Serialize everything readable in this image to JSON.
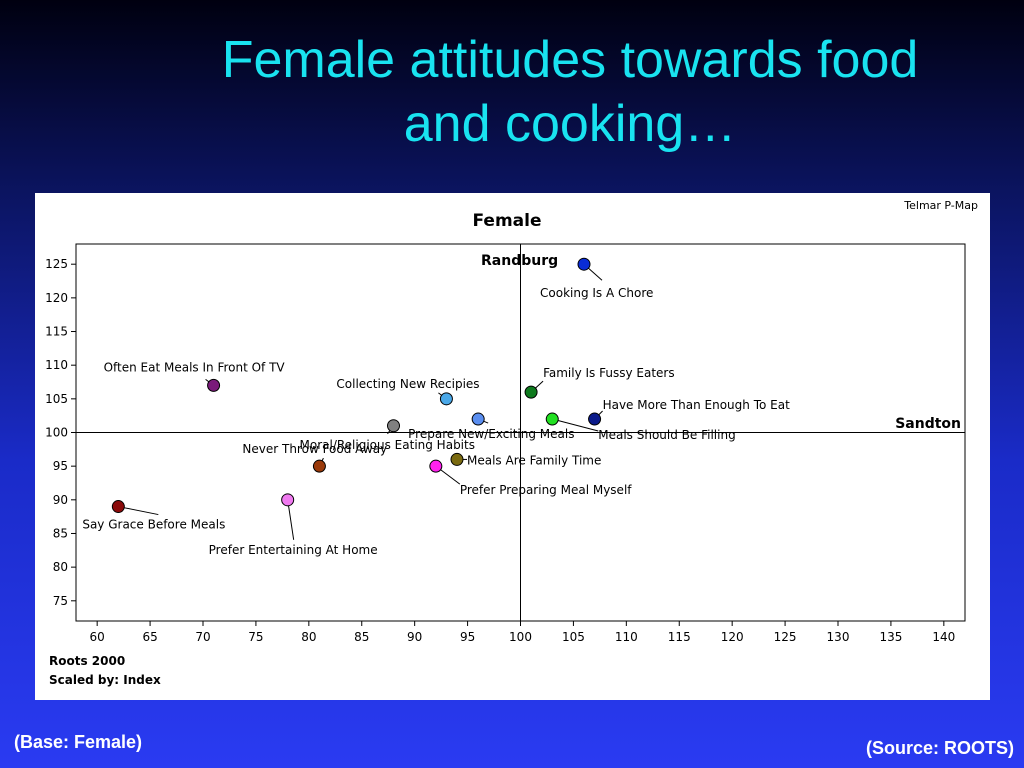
{
  "slide": {
    "title_line1": "Female attitudes towards food",
    "title_line2": "and cooking…",
    "base_note": "(Base: Female)",
    "source_note": "(Source: ROOTS)"
  },
  "chart_data": {
    "type": "scatter",
    "title": "Female",
    "brand": "Telmar P-Map",
    "footer_line1": "Roots 2000",
    "footer_line2": "Scaled by: Index",
    "x_axis_name": "Randburg",
    "y_axis_name": "Sandton",
    "xlim": [
      58,
      142
    ],
    "ylim": [
      72,
      128
    ],
    "x_ticks": [
      60,
      65,
      70,
      75,
      80,
      85,
      90,
      95,
      100,
      105,
      110,
      115,
      120,
      125,
      130,
      135,
      140
    ],
    "y_ticks": [
      75,
      80,
      85,
      90,
      95,
      100,
      105,
      110,
      115,
      120,
      125
    ],
    "crosshair": {
      "x": 100,
      "y": 100
    },
    "points": [
      {
        "label": "Cooking Is A Chore",
        "x": 106,
        "y": 125,
        "color": "#0a2cd6"
      },
      {
        "label": "Often Eat Meals In Front Of TV",
        "x": 71,
        "y": 107,
        "color": "#7a1a7a"
      },
      {
        "label": "Collecting New Recipies",
        "x": 93,
        "y": 105,
        "color": "#4aa8e8"
      },
      {
        "label": "Family Is Fussy Eaters",
        "x": 101,
        "y": 106,
        "color": "#0e7a1e"
      },
      {
        "label": "Have More Than Enough To Eat",
        "x": 107,
        "y": 102,
        "color": "#0a1a8a"
      },
      {
        "label": "Prepare New/Exciting Meals",
        "x": 96,
        "y": 102,
        "color": "#5a8ef0"
      },
      {
        "label": "Meals Should Be Filling",
        "x": 103,
        "y": 102,
        "color": "#22e022"
      },
      {
        "label": "Moral/Religious Eating Habits",
        "x": 88,
        "y": 101,
        "color": "#808080"
      },
      {
        "label": "Meals Are Family Time",
        "x": 94,
        "y": 96,
        "color": "#7a6a10"
      },
      {
        "label": "Prefer Preparing Meal Myself",
        "x": 92,
        "y": 95,
        "color": "#ff22ee"
      },
      {
        "label": "Never Throw Food Away",
        "x": 81,
        "y": 95,
        "color": "#9a3a0a"
      },
      {
        "label": "Prefer Entertaining At Home",
        "x": 78,
        "y": 90,
        "color": "#f07af0"
      },
      {
        "label": "Say Grace Before Meals",
        "x": 62,
        "y": 89,
        "color": "#8a0a0a"
      }
    ]
  }
}
